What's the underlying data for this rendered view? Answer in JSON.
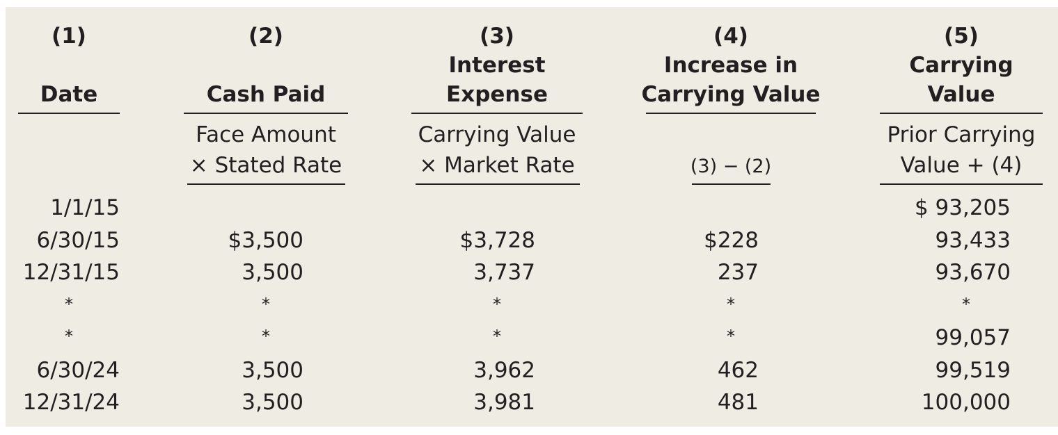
{
  "headers": [
    {
      "number": "(1)",
      "line1": "",
      "line2": "Date"
    },
    {
      "number": "(2)",
      "line1": "",
      "line2": "Cash Paid"
    },
    {
      "number": "(3)",
      "line1": "Interest",
      "line2": "Expense"
    },
    {
      "number": "(4)",
      "line1": "Increase in",
      "line2": "Carrying Value"
    },
    {
      "number": "(5)",
      "line1": "Carrying",
      "line2": "Value"
    }
  ],
  "formulas": {
    "cash_paid": {
      "line1": "Face Amount",
      "line2": "× Stated Rate"
    },
    "interest_expense": {
      "line1": "Carrying Value",
      "line2": "× Market Rate"
    },
    "increase": {
      "line1": "",
      "line2": "(3) − (2)"
    },
    "carrying_value": {
      "line1": "Prior Carrying",
      "line2": "Value + (4)"
    }
  },
  "rows": [
    {
      "date": "1/1/15",
      "cash_paid": "",
      "interest_expense": "",
      "increase": "",
      "carrying_value": "$ 93,205"
    },
    {
      "date": "6/30/15",
      "cash_paid": "$3,500",
      "interest_expense": "$3,728",
      "increase": "$228",
      "carrying_value": "93,433"
    },
    {
      "date": "12/31/15",
      "cash_paid": "3,500",
      "interest_expense": "3,737",
      "increase": "237",
      "carrying_value": "93,670"
    },
    {
      "date": "*",
      "cash_paid": "*",
      "interest_expense": "*",
      "increase": "*",
      "carrying_value": "*"
    },
    {
      "date": "*",
      "cash_paid": "*",
      "interest_expense": "*",
      "increase": "*",
      "carrying_value": "99,057"
    },
    {
      "date": "6/30/24",
      "cash_paid": "3,500",
      "interest_expense": "3,962",
      "increase": "462",
      "carrying_value": "99,519"
    },
    {
      "date": "12/31/24",
      "cash_paid": "3,500",
      "interest_expense": "3,981",
      "increase": "481",
      "carrying_value": "100,000"
    }
  ]
}
